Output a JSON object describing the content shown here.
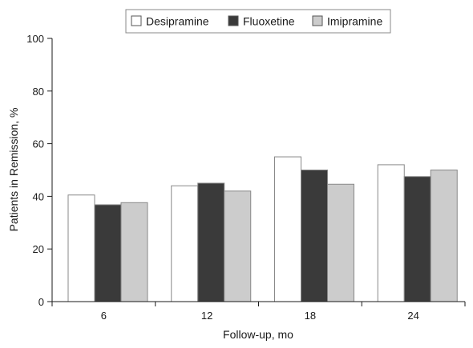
{
  "chart_data": {
    "type": "bar",
    "categories": [
      "6",
      "12",
      "18",
      "24"
    ],
    "series": [
      {
        "name": "Desipramine",
        "values": [
          40.5,
          44,
          55,
          52
        ],
        "color": "#ffffff"
      },
      {
        "name": "Fluoxetine",
        "values": [
          36.8,
          45,
          50,
          47.5
        ],
        "color": "#3a3a3a"
      },
      {
        "name": "Imipramine",
        "values": [
          37.6,
          42,
          44.6,
          50
        ],
        "color": "#cccccc"
      }
    ],
    "xlabel": "Follow-up, mo",
    "ylabel": "Patients in Remission, %",
    "ylim": [
      0,
      100
    ],
    "yticks": [
      0,
      20,
      40,
      60,
      80,
      100
    ],
    "grid": false,
    "legend_position": "top-right",
    "bar_stroke_color": "#888888",
    "axis_color": "#1a1a1a"
  }
}
